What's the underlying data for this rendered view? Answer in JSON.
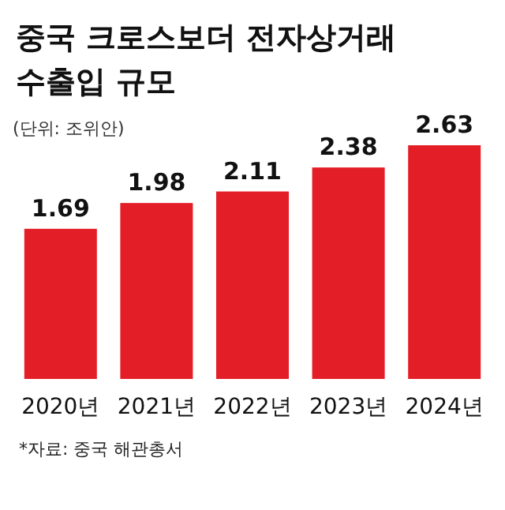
{
  "chart_data": {
    "type": "bar",
    "title": "중국 크로스보더 전자상거래 수출입 규모",
    "subtitle": "(단위: 조위안)",
    "categories": [
      "2020년",
      "2021년",
      "2022년",
      "2023년",
      "2024년"
    ],
    "values": [
      1.69,
      1.98,
      2.11,
      2.38,
      2.63
    ],
    "color": "#e31e26",
    "data_labels": true,
    "annotations": [
      "*자료: 중국 해관총서"
    ]
  }
}
